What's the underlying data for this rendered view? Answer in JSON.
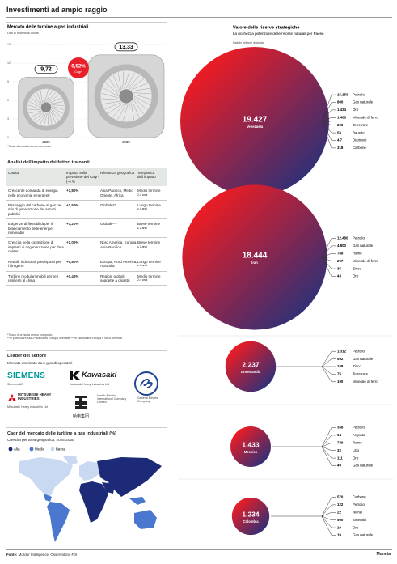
{
  "header": {
    "title": "Investimenti ad ampio raggio"
  },
  "chart_data": [
    {
      "type": "turbine",
      "title": "Mercato delle turbine a gas industriali",
      "subtitle": "Dati in miliardi di dollari",
      "categories": [
        "2025",
        "2030"
      ],
      "values": [
        9.72,
        13.33
      ],
      "value_labels": [
        "9,72",
        "13,33"
      ],
      "ylim": [
        0,
        15
      ],
      "yticks": [
        0,
        3,
        6,
        9,
        12,
        15
      ],
      "color": "#d6d6d6",
      "cagr": {
        "value": 6.52,
        "value_label": "6,52%",
        "label": "Cagr*",
        "color": "#e8202a"
      },
      "note": "*Tasso di crescita annuo composto"
    },
    {
      "type": "bubble",
      "title": "Valore delle riserve strategiche",
      "subtitle": "La ricchezza potenziale delle risorse naturali per Paese",
      "unit": "Dati in miliardi di dollari",
      "categories": [
        "Venezuela",
        "Iran",
        "Groenlandia",
        "Messico",
        "Colombia"
      ],
      "values": [
        19427,
        18444,
        2237,
        1433,
        1234
      ],
      "value_labels": [
        "19.427",
        "18.444",
        "2.237",
        "1.433",
        "1.234"
      ],
      "colors": [
        "#ec1c24",
        "#27317a"
      ],
      "breakdown": [
        {
          "categories": [
            "Petrolio",
            "Gas naturale",
            "Oro",
            "Minerale di ferro",
            "Terre rare",
            "Bauxite",
            "Diamanti",
            "Carbone"
          ],
          "values": [
            15150,
            800,
            1434,
            1468,
            200,
            53,
            4.7,
            318
          ],
          "value_labels": [
            "15.150",
            "800",
            "1.434",
            "1.468",
            "200",
            "53",
            "4,7",
            "318"
          ]
        },
        {
          "categories": [
            "Petrolio",
            "Gas naturale",
            "Rame",
            "Minerale di ferro",
            "Zinco",
            "Oro"
          ],
          "values": [
            12480,
            4800,
            789,
            297,
            35,
            43
          ],
          "value_labels": [
            "12.480",
            "4.800",
            "789",
            "297",
            "35",
            "43"
          ]
        },
        {
          "categories": [
            "Petrolio",
            "Gas naturale",
            "Zinco",
            "Terre rare",
            "Minerale di ferro"
          ],
          "values": [
            1312,
            592,
            158,
            75,
            100
          ],
          "value_labels": [
            "1.312",
            "592",
            "158",
            "75",
            "100"
          ]
        },
        {
          "categories": [
            "Petrolio",
            "Argento",
            "Rame",
            "Litio",
            "Oro",
            "Gas naturale"
          ],
          "values": [
            358,
            94,
            789,
            32,
            111,
            49
          ],
          "value_labels": [
            "358",
            "94",
            "789",
            "32",
            "111",
            "49"
          ]
        },
        {
          "categories": [
            "Carbone",
            "Petrolio",
            "Nichel",
            "Smeraldi",
            "Oro",
            "Gas naturale"
          ],
          "values": [
            570,
            122,
            22,
            500,
            10,
            10
          ],
          "value_labels": [
            "570",
            "122",
            "22",
            "500",
            "10",
            "10"
          ]
        }
      ]
    }
  ],
  "table": {
    "title": "Analisi dell'impatto dei fattori trainanti",
    "columns": [
      "Causa",
      "Impatto sulla previsione del Cagr* (~) %",
      "Rilevanza geografica",
      "Tempistica dell'impatto"
    ],
    "rows": [
      [
        "Crescente domanda di energia nelle economie emergenti",
        "+1,80%",
        "Asia-Pacifico, Medio Oriente, Africa",
        {
          "label": "Medio termine",
          "note": "2-4 anni"
        }
      ],
      [
        "Passaggio dal carbone al gas nel mix di generazione dei servizi pubblici",
        "+1,50%",
        "Globale**",
        {
          "label": "Lungo termine",
          "note": "≥ 4 anni"
        }
      ],
      [
        "Esigenze di flessibilità per il bilanciamento delle energie rinnovabili",
        "+1,20%",
        "Globale***",
        {
          "label": "Breve termine",
          "note": "≤ 2 anni"
        }
      ],
      [
        "Crescita nella costruzione di impianti di cogenerazione per data center",
        "+1,00%",
        "Nord America, Europa, Asia-Pacifico",
        {
          "label": "Breve termine",
          "note": "≤ 2 anni"
        }
      ],
      [
        "Retrofit industriali predisposti per l'idrogeno",
        "+0,80%",
        "Europa, Nord America, Australia",
        {
          "label": "Lungo termine",
          "note": "≥ 4 anni"
        }
      ],
      [
        "Turbine modulari mobili per reti resilienti al clima",
        "+0,40%",
        "Regioni globali soggette a disastri",
        {
          "label": "Medio termine",
          "note": "2-4 anni"
        }
      ]
    ],
    "notes": [
      "*Tasso di crescita annuo composto",
      "**In particolare Asia-Pacifico ed Europa orientale ***In particolare Europa e Nord America"
    ]
  },
  "leaders": {
    "title": "Leader del settore",
    "subtitle": "Mercato dominato da 5 grandi operatori",
    "companies": [
      {
        "logo": "SIEMENS",
        "caption": "Siemens AG"
      },
      {
        "logo": "Kawasaki",
        "caption": "Kawasaki Heavy Industries Ltd"
      },
      {
        "caption": "General Electric Company"
      },
      {
        "logo": "MITSUBISHI HEAVY INDUSTRIES",
        "caption": "Mitsubishi Heavy Industries Ltd"
      },
      {
        "logo": "哈电集团",
        "caption": "Harbin Electric International Company Limited"
      }
    ]
  },
  "map": {
    "title": "Cagr del mercato delle turbine a gas industriali (%)",
    "subtitle": "Crescita per area geografica, 2025-2030",
    "legend": [
      {
        "name": "Alta",
        "color": "#1c2a78"
      },
      {
        "name": "Media",
        "color": "#4a78cf"
      },
      {
        "name": "Bassa",
        "color": "#c9d9f1"
      }
    ]
  },
  "footer": {
    "source_label": "Fonte:",
    "source": "Mordor Intelligence, Osservatorio FdI",
    "brand": "Moneta"
  }
}
